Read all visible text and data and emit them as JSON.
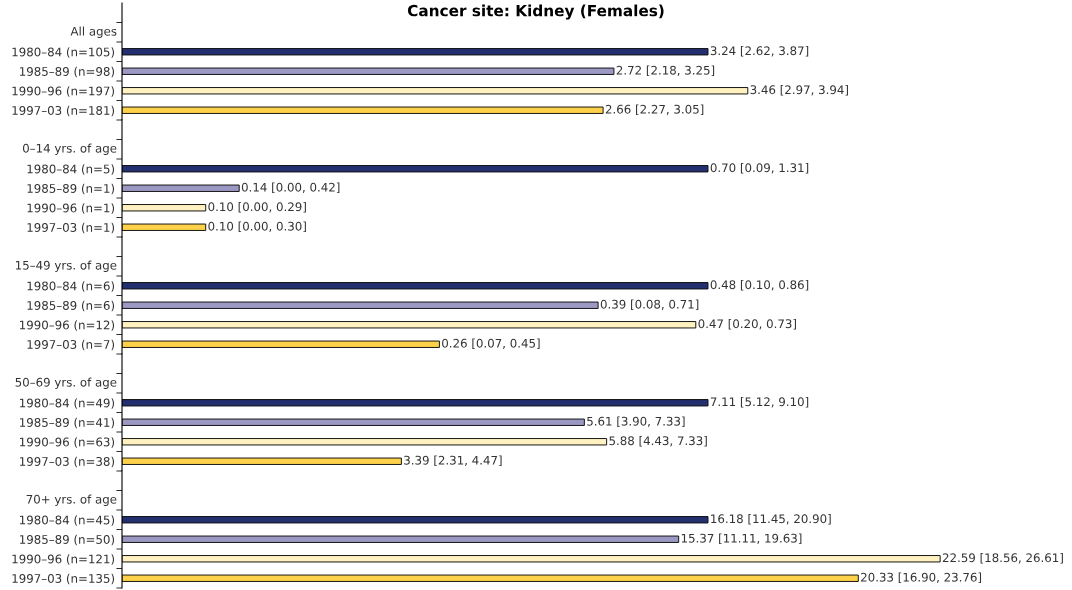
{
  "chart_data": [
    {
      "type": "bar",
      "orientation": "horizontal",
      "title": "Cancer site: Kidney (Females)",
      "subtitle": "All ages",
      "categories": [
        "1980–84 (n=105)",
        "1985–89 (n=98)",
        "1990–96 (n=197)",
        "1997–03 (n=181)"
      ],
      "values": [
        3.24,
        2.72,
        3.46,
        2.66
      ],
      "colors": [
        "#232f6e",
        "#9b98c4",
        "#fff2c0",
        "#fdd24a"
      ],
      "value_labels": [
        "3.24 [2.62, 3.87]",
        "2.72 [2.18, 3.25]",
        "3.46 [2.97, 3.94]",
        "2.66 [2.27, 3.05]"
      ]
    },
    {
      "type": "bar",
      "orientation": "horizontal",
      "subtitle": "0–14 yrs. of age",
      "categories": [
        "1980–84 (n=5)",
        "1985–89 (n=1)",
        "1990–96 (n=1)",
        "1997–03 (n=1)"
      ],
      "values": [
        0.7,
        0.14,
        0.1,
        0.1
      ],
      "colors": [
        "#232f6e",
        "#9b98c4",
        "#fff2c0",
        "#fdd24a"
      ],
      "value_labels": [
        "0.70 [0.09, 1.31]",
        "0.14 [0.00, 0.42]",
        "0.10 [0.00, 0.29]",
        "0.10 [0.00, 0.30]"
      ]
    },
    {
      "type": "bar",
      "orientation": "horizontal",
      "subtitle": "15–49 yrs. of age",
      "categories": [
        "1980–84 (n=6)",
        "1985–89 (n=6)",
        "1990–96 (n=12)",
        "1997–03 (n=7)"
      ],
      "values": [
        0.48,
        0.39,
        0.47,
        0.26
      ],
      "colors": [
        "#232f6e",
        "#9b98c4",
        "#fff2c0",
        "#fdd24a"
      ],
      "value_labels": [
        "0.48 [0.10, 0.86]",
        "0.39 [0.08, 0.71]",
        "0.47 [0.20, 0.73]",
        "0.26 [0.07, 0.45]"
      ]
    },
    {
      "type": "bar",
      "orientation": "horizontal",
      "subtitle": "50–69 yrs. of age",
      "categories": [
        "1980–84 (n=49)",
        "1985–89 (n=41)",
        "1990–96 (n=63)",
        "1997–03 (n=38)"
      ],
      "values": [
        7.11,
        5.61,
        5.88,
        3.39
      ],
      "colors": [
        "#232f6e",
        "#9b98c4",
        "#fff2c0",
        "#fdd24a"
      ],
      "value_labels": [
        "7.11 [5.12, 9.10]",
        "5.61 [3.90, 7.33]",
        "5.88 [4.43, 7.33]",
        "3.39 [2.31, 4.47]"
      ]
    },
    {
      "type": "bar",
      "orientation": "horizontal",
      "subtitle": "70+ yrs. of age",
      "categories": [
        "1980–84 (n=45)",
        "1985–89 (n=50)",
        "1990–96 (n=121)",
        "1997–03 (n=135)"
      ],
      "values": [
        16.18,
        15.37,
        22.59,
        20.33
      ],
      "colors": [
        "#232f6e",
        "#9b98c4",
        "#fff2c0",
        "#fdd24a"
      ],
      "value_labels": [
        "16.18 [11.45, 20.90]",
        "15.37 [11.11, 19.63]",
        "22.59 [18.56, 26.61]",
        "20.33 [16.90, 23.76]"
      ]
    }
  ]
}
